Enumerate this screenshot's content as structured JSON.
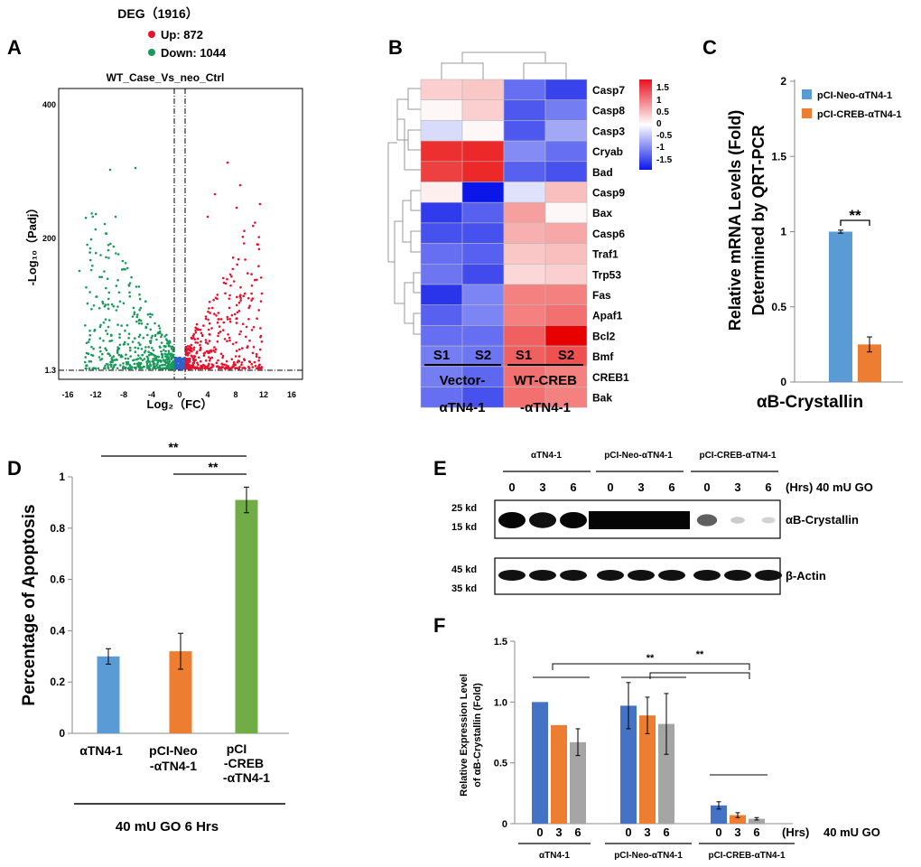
{
  "panels": {
    "A": "A",
    "B": "B",
    "C": "C",
    "D": "D",
    "E": "E",
    "F": "F"
  },
  "panelA": {
    "header_deg": "DEG（1916）",
    "legend_up": "Up: 872",
    "legend_down": "Down: 1044",
    "subtitle": "WT_Case_Vs_neo_Ctrl",
    "xlabel": "Log₂（FC）",
    "ylabel": "-Log₁₀（Padj）",
    "yticks": [
      "400",
      "200",
      "1.3"
    ],
    "xticks": [
      "-16",
      "-12",
      "-8",
      "-4",
      "0",
      "4",
      "8",
      "12",
      "16"
    ],
    "colors": {
      "up": "#e8112d",
      "down": "#1a9a5a",
      "ns": "#2f62c9"
    }
  },
  "panelB": {
    "genes": [
      "Casp7",
      "Casp8",
      "Casp3",
      "Cryab",
      "Bad",
      "Casp9",
      "Bax",
      "Casp6",
      "Traf1",
      "Trp53",
      "Fas",
      "Apaf1",
      "Bcl2",
      "Bmf",
      "CREB1",
      "Bak"
    ],
    "columns": [
      "S1",
      "S2",
      "S1",
      "S2"
    ],
    "group1_line1": "Vector-",
    "group1_line2": "αTN4-1",
    "group2_line1": "WT-CREB",
    "group2_line2": "-αTN4-1",
    "scale_ticks": [
      "1.5",
      "1",
      "0.5",
      "0",
      "-0.5",
      "-1",
      "-1.5"
    ],
    "values": [
      [
        0.3,
        0.35,
        -1.0,
        -1.3
      ],
      [
        0.05,
        0.3,
        -1.15,
        -0.9
      ],
      [
        -0.25,
        0.05,
        -1.15,
        -0.6
      ],
      [
        1.3,
        1.35,
        -0.8,
        -1.0
      ],
      [
        1.2,
        1.35,
        -1.1,
        -1.2
      ],
      [
        0.1,
        -1.8,
        -0.2,
        0.4
      ],
      [
        -1.35,
        -1.1,
        0.6,
        0.05
      ],
      [
        -1.2,
        -1.2,
        0.5,
        0.55
      ],
      [
        -1.0,
        -1.1,
        0.35,
        0.4
      ],
      [
        -0.95,
        -1.25,
        0.25,
        0.3
      ],
      [
        -1.4,
        -0.85,
        0.8,
        0.8
      ],
      [
        -1.1,
        -0.85,
        0.8,
        0.9
      ],
      [
        -1.0,
        -1.0,
        1.0,
        1.6
      ],
      [
        -0.9,
        -0.95,
        1.0,
        1.1
      ],
      [
        -0.9,
        -1.05,
        0.9,
        0.8
      ],
      [
        -1.0,
        -1.2,
        0.9,
        0.8
      ]
    ]
  },
  "chart_data": [
    {
      "panel": "C",
      "type": "bar",
      "ylabel_line1": "Relative mRNA Levels (Fold)",
      "ylabel_line2": "Determined by QRT-PCR",
      "xlabel": "αB-Crystallin",
      "ylim": [
        0,
        2
      ],
      "yticks": [
        "0",
        "0.5",
        "1",
        "1.5",
        "2"
      ],
      "series": [
        {
          "name": "pCI-Neo-αTN4-1",
          "values": [
            1.0
          ],
          "err": [
            0.01
          ],
          "color": "#5b9bd5"
        },
        {
          "name": "pCI-CREB-αTN4-1",
          "values": [
            0.25
          ],
          "err": [
            0.05
          ],
          "color": "#ed7d31"
        }
      ],
      "significance": "**"
    },
    {
      "panel": "D",
      "type": "bar",
      "ylabel": "Percentage of Apoptosis",
      "ylim": [
        0,
        1
      ],
      "yticks": [
        "0",
        "0.2",
        "0.4",
        "0.6",
        "0.8",
        "1"
      ],
      "categories": [
        "αTN4-1",
        "pCI-Neo\n-αTN4-1",
        "pCI\n-CREB\n-αTN4-1"
      ],
      "values": [
        0.3,
        0.32,
        0.91
      ],
      "err": [
        0.03,
        0.07,
        0.05
      ],
      "colors": [
        "#5b9bd5",
        "#ed7d31",
        "#70ad47"
      ],
      "footer": "40 mU GO 6 Hrs",
      "significance": [
        "**",
        "**"
      ]
    },
    {
      "panel": "F",
      "type": "bar",
      "ylabel_line1": "Relative Expression Level",
      "ylabel_line2": "of αB-Crystallin (Fold)",
      "ylim": [
        0,
        1.5
      ],
      "yticks": [
        "0",
        "0.5",
        "1.0",
        "1.5"
      ],
      "hours": [
        "0",
        "3",
        "6"
      ],
      "hrs_label": "(Hrs)",
      "treatment": "40 mU GO",
      "groups": [
        {
          "name": "αTN4-1",
          "values": [
            1.0,
            0.81,
            0.67
          ],
          "err": [
            0.0,
            0.0,
            0.11
          ]
        },
        {
          "name": "pCI-Neo-αTN4-1",
          "values": [
            0.97,
            0.89,
            0.82
          ],
          "err": [
            0.19,
            0.15,
            0.25
          ]
        },
        {
          "name": "pCI-CREB-αTN4-1",
          "values": [
            0.15,
            0.07,
            0.04
          ],
          "err": [
            0.03,
            0.02,
            0.01
          ]
        }
      ],
      "colors": [
        "#4472c4",
        "#ed7d31",
        "#a5a5a5"
      ],
      "significance": [
        "**",
        "**"
      ]
    }
  ],
  "panelE": {
    "groups": [
      "αTN4-1",
      "pCI-Neo-αTN4-1",
      "pCI-CREB-αTN4-1"
    ],
    "hours": [
      "0",
      "3",
      "6",
      "0",
      "3",
      "6",
      "0",
      "3",
      "6"
    ],
    "hrs_label": "(Hrs) 40 mU GO",
    "top_markers": [
      "25 kd",
      "15 kd"
    ],
    "bottom_markers": [
      "45 kd",
      "35 kd"
    ],
    "top_label": "αB-Crystallin",
    "bottom_label": "β-Actin"
  }
}
